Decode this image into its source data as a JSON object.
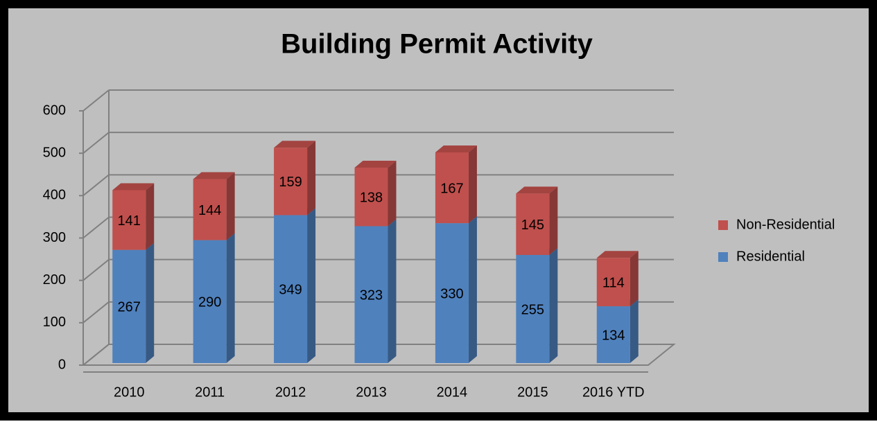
{
  "chart_data": {
    "type": "bar3d_stacked",
    "title": "Building Permit Activity",
    "categories": [
      "2010",
      "2011",
      "2012",
      "2013",
      "2014",
      "2015",
      "2016 YTD"
    ],
    "series": [
      {
        "name": "Residential",
        "color": "#4f81bd",
        "values": [
          267,
          290,
          349,
          323,
          330,
          255,
          134
        ]
      },
      {
        "name": "Non-Residential",
        "color": "#c0504d",
        "values": [
          141,
          144,
          159,
          138,
          167,
          145,
          114
        ]
      }
    ],
    "ylim": [
      0,
      600
    ],
    "yticks": [
      0,
      100,
      200,
      300,
      400,
      500,
      600
    ],
    "grid": true,
    "legend": "right"
  }
}
